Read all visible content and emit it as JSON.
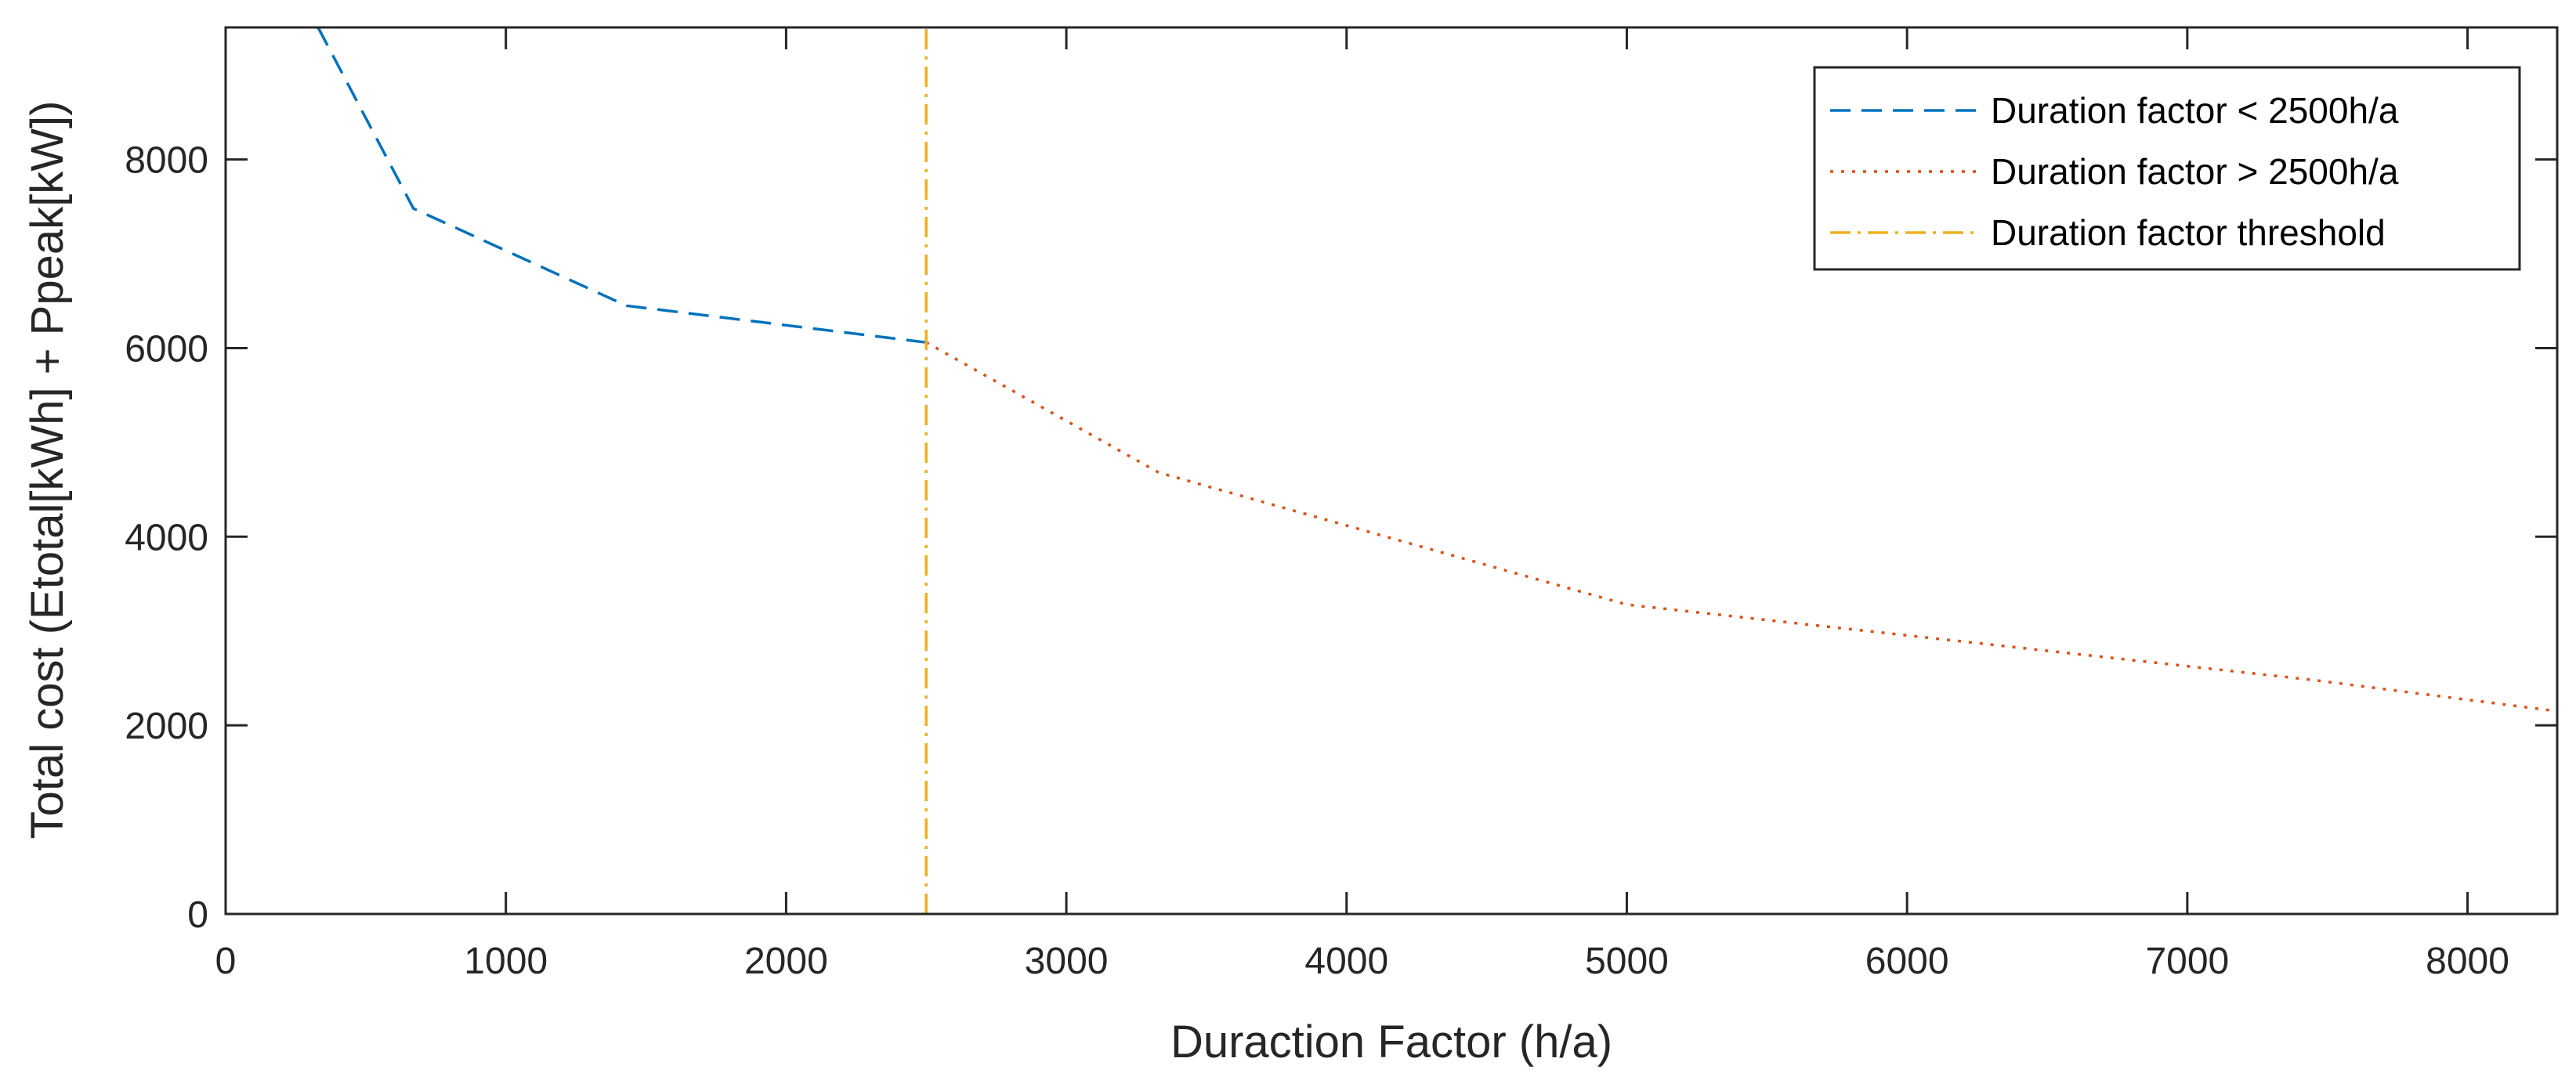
{
  "chart_data": {
    "type": "line",
    "title": "",
    "xlabel": "Duraction Factor (h/a)",
    "ylabel": "Total cost (Etotal[kWh] + Ppeak[kW])",
    "xlim": [
      0,
      8320
    ],
    "ylim": [
      0,
      9400
    ],
    "xticks": [
      0,
      1000,
      2000,
      3000,
      4000,
      5000,
      6000,
      7000,
      8000
    ],
    "yticks": [
      0,
      2000,
      4000,
      6000,
      8000
    ],
    "grid": false,
    "legend_position": "top-right",
    "series": [
      {
        "name": "Duration factor < 2500h/a",
        "style": "dashed",
        "color": "#0072BD",
        "x": [
          330,
          670,
          1430,
          2500
        ],
        "y": [
          9400,
          7480,
          6450,
          6060
        ]
      },
      {
        "name": "Duration factor > 2500h/a",
        "style": "dotted",
        "color": "#D95319",
        "x": [
          2500,
          3330,
          5000,
          7450,
          8320
        ],
        "y": [
          6060,
          4680,
          3280,
          2480,
          2150
        ]
      },
      {
        "name": "Duration factor threshold",
        "style": "dashdot",
        "color": "#EDB120",
        "x": [
          2500,
          2500
        ],
        "y": [
          0,
          9400
        ]
      }
    ]
  }
}
